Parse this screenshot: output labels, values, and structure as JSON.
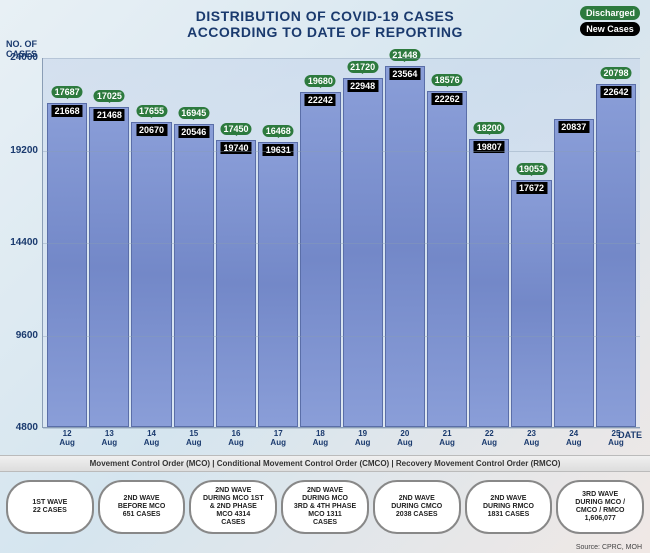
{
  "title": {
    "line1": "DISTRIBUTION OF COVID-19 CASES",
    "line2": "ACCORDING TO DATE OF REPORTING"
  },
  "legend": {
    "discharged": "Discharged",
    "new_cases": "New Cases"
  },
  "yaxis": {
    "label_l1": "NO. OF",
    "label_l2": "CASES"
  },
  "xaxis": {
    "label": "DATE"
  },
  "chart": {
    "ymin": 4800,
    "ymax": 24000,
    "yticks": [
      4800,
      9600,
      14400,
      19200,
      24000
    ],
    "bar_fill": "#8a9ed8",
    "bar_border": "#5a6ea8",
    "disch_bg": "#2d7a3e",
    "new_bg": "#000000",
    "bars": [
      {
        "date_l1": "12",
        "date_l2": "Aug",
        "discharged": 17687,
        "new": 21668
      },
      {
        "date_l1": "13",
        "date_l2": "Aug",
        "discharged": 17025,
        "new": 21468
      },
      {
        "date_l1": "14",
        "date_l2": "Aug",
        "discharged": 17655,
        "new": 20670
      },
      {
        "date_l1": "15",
        "date_l2": "Aug",
        "discharged": 16945,
        "new": 20546
      },
      {
        "date_l1": "16",
        "date_l2": "Aug",
        "discharged": 17450,
        "new": 19740
      },
      {
        "date_l1": "17",
        "date_l2": "Aug",
        "discharged": 16468,
        "new": 19631
      },
      {
        "date_l1": "18",
        "date_l2": "Aug",
        "discharged": 19680,
        "new": 22242
      },
      {
        "date_l1": "19",
        "date_l2": "Aug",
        "discharged": 21720,
        "new": 22948
      },
      {
        "date_l1": "20",
        "date_l2": "Aug",
        "discharged": 21448,
        "new": 23564
      },
      {
        "date_l1": "21",
        "date_l2": "Aug",
        "discharged": 18576,
        "new": 22262
      },
      {
        "date_l1": "22",
        "date_l2": "Aug",
        "discharged": 18200,
        "new": 19807
      },
      {
        "date_l1": "23",
        "date_l2": "Aug",
        "discharged": 19053,
        "new": 17672
      },
      {
        "date_l1": "24",
        "date_l2": "Aug",
        "discharged": null,
        "new": 20837
      },
      {
        "date_l1": "25",
        "date_l2": "Aug",
        "discharged": 20798,
        "new": 22642
      }
    ]
  },
  "mco_note": "Movement Control Order (MCO)  |  Conditional Movement Control Order (CMCO)  |  Recovery Movement Control Order (RMCO)",
  "waves": [
    {
      "l1": "1ST WAVE",
      "l2": "22 CASES"
    },
    {
      "l1": "2ND WAVE",
      "l2": "BEFORE MCO",
      "l3": "651 CASES"
    },
    {
      "l1": "2ND WAVE",
      "l2": "DURING MCO 1ST",
      "l3": "& 2ND PHASE",
      "l4": "MCO 4314",
      "l5": "CASES"
    },
    {
      "l1": "2ND WAVE",
      "l2": "DURING MCO",
      "l3": "3RD & 4TH PHASE",
      "l4": "MCO 1311",
      "l5": "CASES"
    },
    {
      "l1": "2ND WAVE",
      "l2": "DURING CMCO",
      "l3": "2038 CASES"
    },
    {
      "l1": "2ND WAVE",
      "l2": "DURING RMCO",
      "l3": "1831 CASES"
    },
    {
      "l1": "3RD WAVE",
      "l2": "DURING MCO /",
      "l3": "CMCO / RMCO",
      "l4": "1,606,077"
    }
  ],
  "source": "Source: CPRC, MOH"
}
